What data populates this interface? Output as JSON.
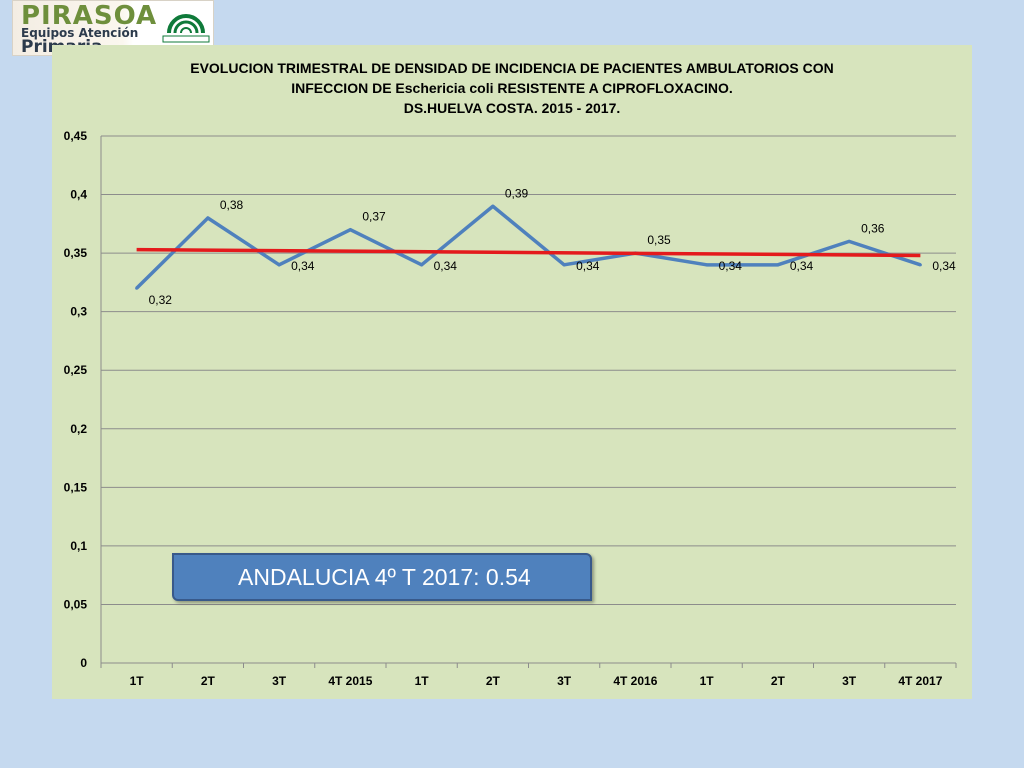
{
  "logo": {
    "line1": "PIRASOA",
    "line2": "Equipos Atención",
    "line3": "Primaria",
    "seal_text": "JUNTA DE ANDALUCIA"
  },
  "callout": {
    "text": "ANDALUCIA 4º T 2017: 0.54"
  },
  "colors": {
    "series": "#4f81bd",
    "trend": "#e41a1c",
    "plot_bg": "#d7e4bd",
    "page_bg": "#c5d9ef",
    "callout_bg": "#4f81bd"
  },
  "chart_data": {
    "type": "line",
    "title_lines": [
      "EVOLUCION TRIMESTRAL DE DENSIDAD DE INCIDENCIA DE PACIENTES AMBULATORIOS CON",
      "INFECCION DE Eschericia coli RESISTENTE A CIPROFLOXACINO.",
      "DS.HUELVA COSTA. 2015 - 2017."
    ],
    "categories": [
      "1T",
      "2T",
      "3T",
      "4T 2015",
      "1T",
      "2T",
      "3T",
      "4T 2016",
      "1T",
      "2T",
      "3T",
      "4T 2017"
    ],
    "series": [
      {
        "values": [
          0.32,
          0.38,
          0.34,
          0.37,
          0.34,
          0.39,
          0.34,
          0.35,
          0.34,
          0.34,
          0.36,
          0.34
        ],
        "labels": [
          "0,32",
          "0,38",
          "0,34",
          "0,37",
          "0,34",
          "0,39",
          "0,34",
          "0,35",
          "0,34",
          "0,34",
          "0,36",
          "0,34"
        ]
      }
    ],
    "trendline": {
      "start": 0.353,
      "end": 0.348
    },
    "y_ticks": [
      0,
      0.05,
      0.1,
      0.15,
      0.2,
      0.25,
      0.3,
      0.35,
      0.4,
      0.45
    ],
    "y_tick_labels": [
      "0",
      "0,05",
      "0,1",
      "0,15",
      "0,2",
      "0,25",
      "0,3",
      "0,35",
      "0,4",
      "0,45"
    ],
    "ylim": [
      0,
      0.45
    ],
    "grid": true,
    "legend": "none",
    "xlabel": "",
    "ylabel": ""
  }
}
